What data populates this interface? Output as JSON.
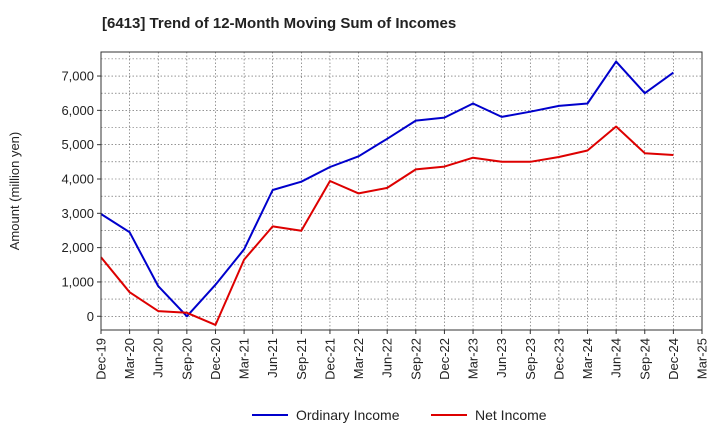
{
  "chart_data": {
    "type": "line",
    "title": "[6413]  Trend of 12-Month Moving Sum of Incomes",
    "xlabel": "",
    "ylabel": "Amount (million yen)",
    "ylim": [
      -400,
      7700
    ],
    "yticks": [
      0,
      1000,
      2000,
      3000,
      4000,
      5000,
      6000,
      7000
    ],
    "ytick_labels": [
      "0",
      "1,000",
      "2,000",
      "3,000",
      "4,000",
      "5,000",
      "6,000",
      "7,000"
    ],
    "x": [
      "Dec-19",
      "Mar-20",
      "Jun-20",
      "Sep-20",
      "Dec-20",
      "Mar-21",
      "Jun-21",
      "Sep-21",
      "Dec-21",
      "Mar-22",
      "Jun-22",
      "Sep-22",
      "Dec-22",
      "Mar-23",
      "Jun-23",
      "Sep-23",
      "Dec-23",
      "Mar-24",
      "Jun-24",
      "Sep-24",
      "Dec-24",
      "Mar-25"
    ],
    "grid": true,
    "legend_position": "bottom",
    "series": [
      {
        "name": "Ordinary Income",
        "color": "#0000cc",
        "values": [
          2980,
          2450,
          880,
          0,
          920,
          1950,
          3680,
          3920,
          4350,
          4660,
          5170,
          5700,
          5790,
          6200,
          5810,
          5960,
          6130,
          6200,
          7420,
          6500,
          7100,
          null
        ]
      },
      {
        "name": "Net Income",
        "color": "#dd0000",
        "values": [
          1720,
          700,
          150,
          100,
          -250,
          1650,
          2620,
          2490,
          3940,
          3580,
          3740,
          4280,
          4360,
          4620,
          4500,
          4500,
          4640,
          4830,
          5530,
          4750,
          4700,
          null
        ]
      }
    ]
  }
}
